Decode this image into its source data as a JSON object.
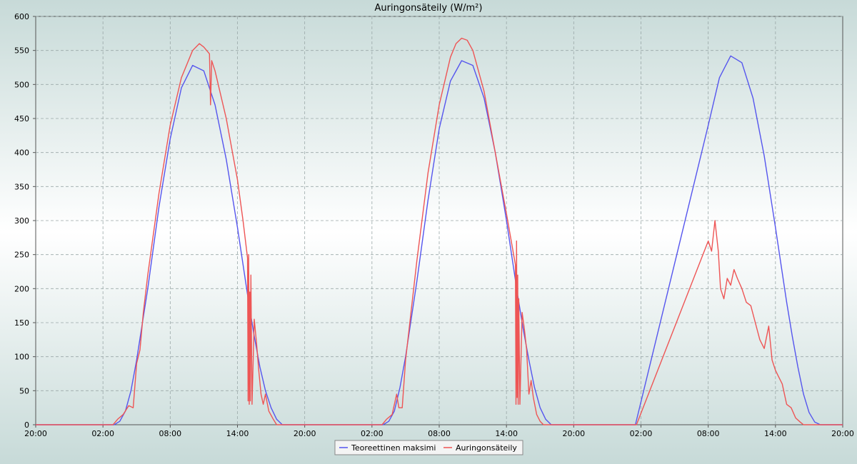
{
  "colors": {
    "background_outer": "#c9dcda",
    "background_inner": "#ffffff",
    "grid": "#9aa8a8",
    "axis": "#555555",
    "series_max": "#5555ee",
    "series_actual": "#ee5555"
  },
  "chart_data": {
    "type": "line",
    "title": "Auringonsäteily (W/m²)",
    "xlabel": "",
    "ylabel": "",
    "ylim": [
      0,
      600
    ],
    "yticks": [
      0,
      50,
      100,
      150,
      200,
      250,
      300,
      350,
      400,
      450,
      500,
      550,
      600
    ],
    "xlim": [
      0,
      72
    ],
    "xticks": [
      0,
      6,
      12,
      18,
      24,
      30,
      36,
      42,
      48,
      54,
      60,
      66,
      72
    ],
    "xtick_labels": [
      "20:00",
      "02:00",
      "08:00",
      "14:00",
      "20:00",
      "02:00",
      "08:00",
      "14:00",
      "20:00",
      "02:00",
      "08:00",
      "14:00",
      "20:00"
    ],
    "grid": true,
    "legend_position": "bottom-center",
    "series": [
      {
        "name": "Teoreettinen maksimi",
        "color": "#5555ee",
        "points": [
          [
            0,
            0
          ],
          [
            7,
            0
          ],
          [
            7.5,
            5
          ],
          [
            8,
            20
          ],
          [
            8.5,
            50
          ],
          [
            9,
            95
          ],
          [
            10,
            200
          ],
          [
            11,
            320
          ],
          [
            12,
            420
          ],
          [
            13,
            495
          ],
          [
            14,
            528
          ],
          [
            15,
            520
          ],
          [
            16,
            470
          ],
          [
            17,
            390
          ],
          [
            18,
            290
          ],
          [
            19,
            180
          ],
          [
            19.5,
            130
          ],
          [
            20,
            85
          ],
          [
            20.5,
            50
          ],
          [
            21,
            25
          ],
          [
            21.5,
            8
          ],
          [
            22,
            0
          ],
          [
            31,
            0
          ],
          [
            31.5,
            5
          ],
          [
            32,
            20
          ],
          [
            32.5,
            55
          ],
          [
            33,
            100
          ],
          [
            34,
            210
          ],
          [
            35,
            330
          ],
          [
            36,
            435
          ],
          [
            37,
            505
          ],
          [
            38,
            535
          ],
          [
            39,
            528
          ],
          [
            40,
            480
          ],
          [
            41,
            400
          ],
          [
            42,
            300
          ],
          [
            43,
            190
          ],
          [
            43.5,
            140
          ],
          [
            44,
            95
          ],
          [
            44.5,
            55
          ],
          [
            45,
            25
          ],
          [
            45.5,
            8
          ],
          [
            46,
            0
          ],
          [
            53.5,
            0
          ],
          [
            60,
            440
          ],
          [
            61,
            510
          ],
          [
            62,
            542
          ],
          [
            63,
            532
          ],
          [
            64,
            480
          ],
          [
            65,
            395
          ],
          [
            66,
            290
          ],
          [
            67,
            180
          ],
          [
            67.5,
            130
          ],
          [
            68,
            85
          ],
          [
            68.5,
            45
          ],
          [
            69,
            18
          ],
          [
            69.5,
            4
          ],
          [
            70,
            0
          ],
          [
            72,
            0
          ]
        ]
      },
      {
        "name": "Auringonsäteily",
        "color": "#ee5555",
        "points": [
          [
            0,
            0
          ],
          [
            6.9,
            0
          ],
          [
            7.3,
            8
          ],
          [
            7.8,
            15
          ],
          [
            8.3,
            28
          ],
          [
            8.7,
            25
          ],
          [
            9,
            90
          ],
          [
            9.3,
            110
          ],
          [
            9.6,
            165
          ],
          [
            10,
            220
          ],
          [
            11,
            340
          ],
          [
            12,
            440
          ],
          [
            13,
            510
          ],
          [
            14,
            550
          ],
          [
            14.6,
            560
          ],
          [
            15,
            555
          ],
          [
            15.5,
            545
          ],
          [
            15.6,
            470
          ],
          [
            15.7,
            535
          ],
          [
            16,
            520
          ],
          [
            17,
            450
          ],
          [
            18,
            360
          ],
          [
            18.5,
            300
          ],
          [
            18.9,
            245
          ],
          [
            18.95,
            35
          ],
          [
            19.0,
            250
          ],
          [
            19.05,
            30
          ],
          [
            19.1,
            195
          ],
          [
            19.15,
            35
          ],
          [
            19.2,
            220
          ],
          [
            19.3,
            30
          ],
          [
            19.5,
            155
          ],
          [
            19.7,
            120
          ],
          [
            19.9,
            80
          ],
          [
            20.1,
            45
          ],
          [
            20.3,
            30
          ],
          [
            20.5,
            45
          ],
          [
            20.8,
            20
          ],
          [
            21.2,
            8
          ],
          [
            21.5,
            0
          ],
          [
            30.9,
            0
          ],
          [
            31.3,
            8
          ],
          [
            31.8,
            15
          ],
          [
            32.2,
            45
          ],
          [
            32.4,
            25
          ],
          [
            32.7,
            25
          ],
          [
            33,
            95
          ],
          [
            34,
            240
          ],
          [
            35,
            370
          ],
          [
            36,
            470
          ],
          [
            37,
            540
          ],
          [
            37.5,
            560
          ],
          [
            38,
            568
          ],
          [
            38.5,
            565
          ],
          [
            39,
            550
          ],
          [
            40,
            490
          ],
          [
            41,
            400
          ],
          [
            42,
            310
          ],
          [
            42.8,
            235
          ],
          [
            42.85,
            30
          ],
          [
            42.9,
            270
          ],
          [
            42.95,
            40
          ],
          [
            43.0,
            220
          ],
          [
            43.05,
            30
          ],
          [
            43.1,
            185
          ],
          [
            43.2,
            30
          ],
          [
            43.4,
            165
          ],
          [
            43.6,
            140
          ],
          [
            43.8,
            110
          ],
          [
            44.0,
            45
          ],
          [
            44.2,
            65
          ],
          [
            44.4,
            40
          ],
          [
            44.7,
            15
          ],
          [
            45,
            5
          ],
          [
            45.3,
            0
          ],
          [
            53.6,
            0
          ],
          [
            60,
            270
          ],
          [
            60.3,
            255
          ],
          [
            60.6,
            300
          ],
          [
            60.9,
            255
          ],
          [
            61.1,
            200
          ],
          [
            61.4,
            185
          ],
          [
            61.7,
            215
          ],
          [
            62,
            205
          ],
          [
            62.3,
            228
          ],
          [
            62.6,
            215
          ],
          [
            63,
            200
          ],
          [
            63.4,
            180
          ],
          [
            63.8,
            175
          ],
          [
            64.2,
            150
          ],
          [
            64.6,
            125
          ],
          [
            65,
            112
          ],
          [
            65.4,
            145
          ],
          [
            65.7,
            95
          ],
          [
            66,
            80
          ],
          [
            66.3,
            70
          ],
          [
            66.6,
            60
          ],
          [
            67,
            30
          ],
          [
            67.4,
            25
          ],
          [
            67.8,
            10
          ],
          [
            68.2,
            4
          ],
          [
            68.5,
            0
          ],
          [
            72,
            0
          ]
        ]
      }
    ]
  }
}
